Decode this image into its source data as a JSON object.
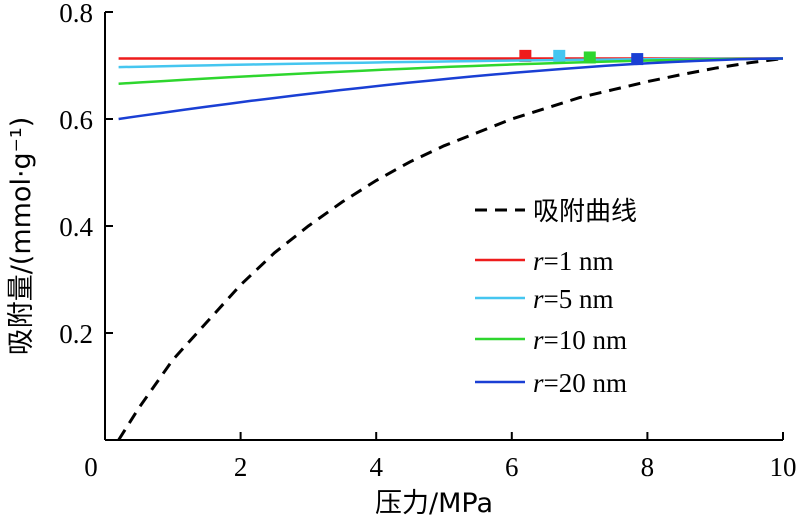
{
  "chart_data": {
    "type": "line",
    "xlabel": "压力/MPa",
    "ylabel": "吸附量/(mmol·g⁻¹)",
    "xlim": [
      0,
      10
    ],
    "ylim": [
      0,
      0.8
    ],
    "x_ticks": [
      "0",
      "2",
      "4",
      "6",
      "8",
      "10"
    ],
    "y_ticks": [
      "0.2",
      "0.4",
      "0.6",
      "0.8"
    ],
    "x_tick_values": [
      0,
      2,
      4,
      6,
      8,
      10
    ],
    "y_tick_values": [
      0.2,
      0.4,
      0.6,
      0.8
    ],
    "grid": false,
    "legend_position": "center-right",
    "adsorption_curve": {
      "name": "吸附曲线",
      "style": "dashed",
      "color": "#000000",
      "points": [
        {
          "x": 0.2,
          "y": 0.0
        },
        {
          "x": 0.5,
          "y": 0.06
        },
        {
          "x": 1.0,
          "y": 0.15
        },
        {
          "x": 1.5,
          "y": 0.22
        },
        {
          "x": 2.0,
          "y": 0.29
        },
        {
          "x": 2.5,
          "y": 0.35
        },
        {
          "x": 3.0,
          "y": 0.4
        },
        {
          "x": 3.5,
          "y": 0.445
        },
        {
          "x": 4.0,
          "y": 0.485
        },
        {
          "x": 4.5,
          "y": 0.52
        },
        {
          "x": 5.0,
          "y": 0.55
        },
        {
          "x": 5.5,
          "y": 0.575
        },
        {
          "x": 6.0,
          "y": 0.6
        },
        {
          "x": 6.5,
          "y": 0.62
        },
        {
          "x": 7.0,
          "y": 0.64
        },
        {
          "x": 7.5,
          "y": 0.655
        },
        {
          "x": 8.0,
          "y": 0.67
        },
        {
          "x": 8.5,
          "y": 0.683
        },
        {
          "x": 9.0,
          "y": 0.695
        },
        {
          "x": 9.5,
          "y": 0.705
        },
        {
          "x": 10.0,
          "y": 0.713
        }
      ]
    },
    "series": [
      {
        "name": "r=1 nm",
        "r_label": "r",
        "value_label": "=1 nm",
        "color": "#ee1c1c",
        "x": [
          0.2,
          10.0
        ],
        "y": [
          0.713,
          0.713
        ],
        "marker": {
          "x": 6.2,
          "y": 0.718
        }
      },
      {
        "name": "r=5 nm",
        "r_label": "r",
        "value_label": "=5 nm",
        "color": "#45c6f0",
        "x": [
          0.2,
          10.0
        ],
        "y": [
          0.697,
          0.713
        ],
        "marker": {
          "x": 6.7,
          "y": 0.718
        }
      },
      {
        "name": "r=10 nm",
        "r_label": "r",
        "value_label": "=10 nm",
        "color": "#2ed62e",
        "x": [
          0.2,
          10.0
        ],
        "y": [
          0.666,
          0.713
        ],
        "marker": {
          "x": 7.15,
          "y": 0.715
        }
      },
      {
        "name": "r=20 nm",
        "r_label": "r",
        "value_label": "=20 nm",
        "color": "#1a3fd4",
        "x": [
          0.2,
          10.0
        ],
        "y": [
          0.6,
          0.713
        ],
        "marker": {
          "x": 7.85,
          "y": 0.712
        }
      }
    ]
  }
}
